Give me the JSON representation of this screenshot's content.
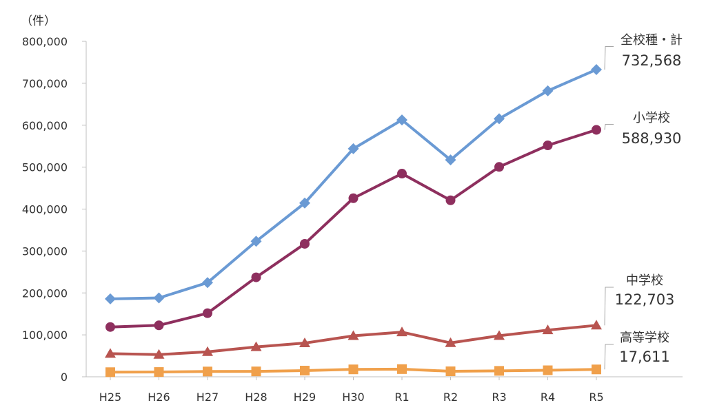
{
  "chart_data": {
    "type": "line",
    "unit_label": "（件）",
    "categories": [
      "H25",
      "H26",
      "H27",
      "H28",
      "H29",
      "H30",
      "R1",
      "R2",
      "R3",
      "R4",
      "R5"
    ],
    "y_ticks": [
      "0",
      "100,000",
      "200,000",
      "300,000",
      "400,000",
      "500,000",
      "600,000",
      "700,000",
      "800,000"
    ],
    "ylim": [
      0,
      800000
    ],
    "grid": false,
    "legend": "inline labels at right end of lines",
    "series": [
      {
        "name": "全校種・計",
        "end_label": "732,568",
        "color": "#6a9ad4",
        "marker": "diamond",
        "values": [
          185803,
          188072,
          224540,
          323143,
          414378,
          543933,
          612496,
          517163,
          615351,
          681948,
          732568
        ]
      },
      {
        "name": "小学校",
        "end_label": "588,930",
        "color": "#8e2f5e",
        "marker": "circle",
        "values": [
          118748,
          122734,
          151692,
          237256,
          317121,
          425844,
          484545,
          420897,
          500562,
          551944,
          588930
        ]
      },
      {
        "name": "中学校",
        "end_label": "122,703",
        "color": "#b85450",
        "marker": "triangle",
        "values": [
          55248,
          52971,
          59502,
          71309,
          80424,
          97704,
          106524,
          80877,
          97937,
          111404,
          122703
        ]
      },
      {
        "name": "高等学校",
        "end_label": "17,611",
        "color": "#f0a04b",
        "marker": "square",
        "values": [
          11039,
          11404,
          12664,
          12874,
          14789,
          17709,
          18352,
          13126,
          14157,
          15568,
          17611
        ]
      }
    ]
  }
}
